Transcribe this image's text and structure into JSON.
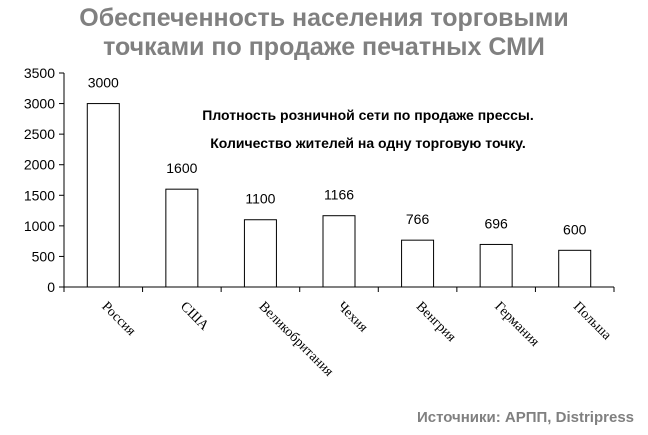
{
  "chart_data": {
    "type": "bar",
    "title_lines": [
      "Обеспеченность населения торговыми",
      "точками по продаже печатных СМИ"
    ],
    "annotation_lines": [
      "Плотность розничной сети по продаже прессы.",
      "Количество жителей на одну торговую точку."
    ],
    "source": "Источники: АРПП, Distripress",
    "categories": [
      "Россия",
      "США",
      "Великобритания",
      "Чехия",
      "Венгрия",
      "Германия",
      "Польша"
    ],
    "values": [
      3000,
      1600,
      1100,
      1166,
      766,
      696,
      600
    ],
    "data_labels": [
      "3000",
      "1600",
      "1100",
      "1166",
      "766",
      "696",
      "600"
    ],
    "yticks": [
      0,
      500,
      1000,
      1500,
      2000,
      2500,
      3000,
      3500
    ],
    "ylim": [
      0,
      3500
    ],
    "xlabel": "",
    "ylabel": "",
    "grid": false,
    "bar_fill": "#ffffff",
    "bar_stroke": "#000000"
  }
}
